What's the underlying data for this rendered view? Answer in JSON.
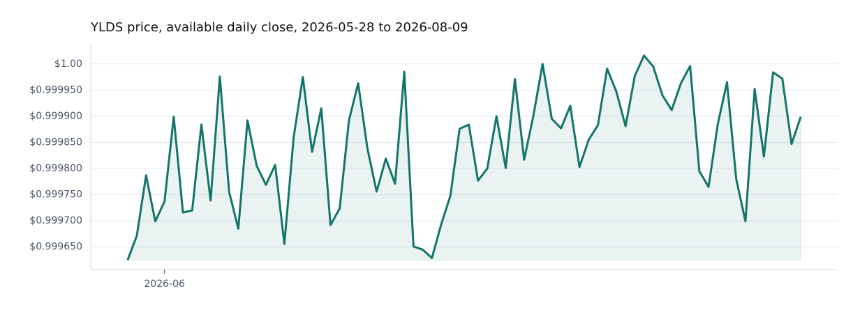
{
  "chart_data": {
    "type": "line",
    "title": "YLDS price, available daily close, 2026-05-28 to 2026-08-09",
    "x": [
      "2026-05-28",
      "2026-05-29",
      "2026-05-30",
      "2026-05-31",
      "2026-06-01",
      "2026-06-02",
      "2026-06-03",
      "2026-06-04",
      "2026-06-05",
      "2026-06-06",
      "2026-06-07",
      "2026-06-08",
      "2026-06-09",
      "2026-06-10",
      "2026-06-11",
      "2026-06-12",
      "2026-06-13",
      "2026-06-14",
      "2026-06-15",
      "2026-06-16",
      "2026-06-17",
      "2026-06-18",
      "2026-06-19",
      "2026-06-20",
      "2026-06-21",
      "2026-06-22",
      "2026-06-23",
      "2026-06-24",
      "2026-06-25",
      "2026-06-26",
      "2026-06-27",
      "2026-06-28",
      "2026-06-29",
      "2026-06-30",
      "2026-07-01",
      "2026-07-02",
      "2026-07-03",
      "2026-07-04",
      "2026-07-05",
      "2026-07-06",
      "2026-07-07",
      "2026-07-08",
      "2026-07-09",
      "2026-07-10",
      "2026-07-11",
      "2026-07-12",
      "2026-07-13",
      "2026-07-14",
      "2026-07-15",
      "2026-07-16",
      "2026-07-17",
      "2026-07-18",
      "2026-07-19",
      "2026-07-20",
      "2026-07-21",
      "2026-07-22",
      "2026-07-23",
      "2026-07-24",
      "2026-07-25",
      "2026-07-26",
      "2026-07-27",
      "2026-07-28",
      "2026-07-29",
      "2026-07-30",
      "2026-07-31",
      "2026-08-01",
      "2026-08-02",
      "2026-08-03",
      "2026-08-04",
      "2026-08-05",
      "2026-08-06",
      "2026-08-07",
      "2026-08-08",
      "2026-08-09"
    ],
    "series": [
      {
        "name": "YLDS",
        "color": "#13756a",
        "values": [
          0.999625,
          0.999672,
          0.999787,
          0.999699,
          0.999737,
          0.999899,
          0.999716,
          0.99972,
          0.999884,
          0.999739,
          0.999976,
          0.999756,
          0.999685,
          0.999892,
          0.999805,
          0.999769,
          0.999807,
          0.999656,
          0.999859,
          0.999975,
          0.999832,
          0.999915,
          0.999692,
          0.999724,
          0.999892,
          0.999963,
          0.999839,
          0.999756,
          0.999819,
          0.999771,
          0.999985,
          0.999651,
          0.999645,
          0.999629,
          0.999693,
          0.999748,
          0.999876,
          0.999884,
          0.999777,
          0.9998,
          0.9999,
          0.999801,
          0.999971,
          0.999817,
          0.999901,
          1.0,
          0.999895,
          0.999877,
          0.99992,
          0.999803,
          0.999855,
          0.999883,
          0.999991,
          0.999947,
          0.999881,
          0.999977,
          1.000016,
          0.999995,
          0.99994,
          0.999912,
          0.999963,
          0.999996,
          0.999795,
          0.999765,
          0.999885,
          0.999965,
          0.99978,
          0.999699,
          0.999952,
          0.999823,
          0.999984,
          0.999972,
          0.999847,
          0.999899
        ]
      }
    ],
    "xlim": [
      "2026-05-24",
      "2026-08-13"
    ],
    "xticks": [
      {
        "value": "2026-06-01",
        "label": "2026-06"
      }
    ],
    "ylim": [
      0.999607,
      1.000037
    ],
    "yticks": [
      {
        "value": 0.99965,
        "label": "$0.999650"
      },
      {
        "value": 0.9997,
        "label": "$0.999700"
      },
      {
        "value": 0.99975,
        "label": "$0.999750"
      },
      {
        "value": 0.9998,
        "label": "$0.999800"
      },
      {
        "value": 0.99985,
        "label": "$0.999850"
      },
      {
        "value": 0.9999,
        "label": "$0.999900"
      },
      {
        "value": 0.99995,
        "label": "$0.999950"
      },
      {
        "value": 1.0,
        "label": "$1.00"
      }
    ],
    "grid": true,
    "area_fill": true
  }
}
